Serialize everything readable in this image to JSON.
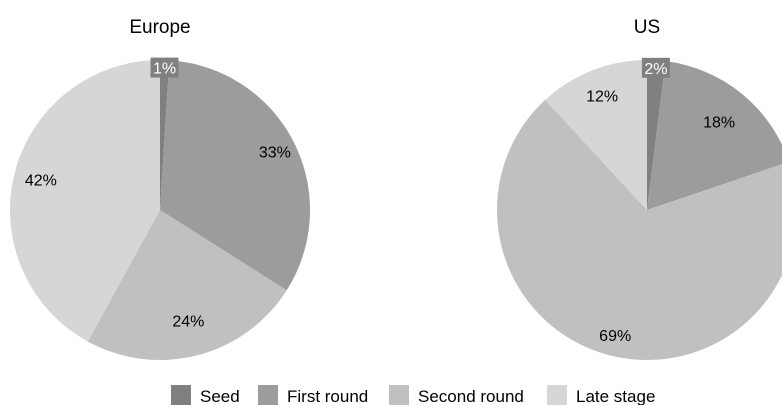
{
  "chart_data": [
    {
      "type": "pie",
      "title": "Europe",
      "start_angle_deg": 0,
      "direction": "clockwise",
      "slices": [
        {
          "label": "Seed",
          "value": 1,
          "display": "1%"
        },
        {
          "label": "First round",
          "value": 33,
          "display": "33%"
        },
        {
          "label": "Second round",
          "value": 24,
          "display": "24%"
        },
        {
          "label": "Late stage",
          "value": 42,
          "display": "42%"
        }
      ]
    },
    {
      "type": "pie",
      "title": "US",
      "start_angle_deg": 0,
      "direction": "clockwise",
      "slices": [
        {
          "label": "Seed",
          "value": 2,
          "display": "2%"
        },
        {
          "label": "First round",
          "value": 18,
          "display": "18%"
        },
        {
          "label": "Second round",
          "value": 69,
          "display": "69%"
        },
        {
          "label": "Late stage",
          "value": 12,
          "display": "12%"
        }
      ]
    }
  ],
  "legend": {
    "placement": "bottom",
    "items": [
      {
        "label": "Seed",
        "color": "#808080"
      },
      {
        "label": "First round",
        "color": "#9c9c9c"
      },
      {
        "label": "Second round",
        "color": "#c0c0c0"
      },
      {
        "label": "Late stage",
        "color": "#d6d6d8"
      }
    ]
  }
}
